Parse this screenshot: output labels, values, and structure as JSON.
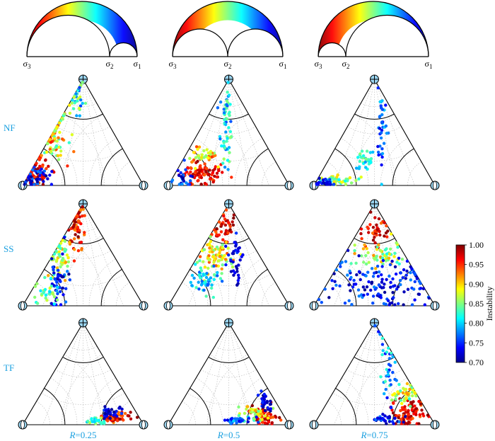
{
  "chart_data": {
    "type": "scatter",
    "row_labels": [
      "NF",
      "SS",
      "TF"
    ],
    "column_labels": [
      {
        "var": "R",
        "text": "=0.25"
      },
      {
        "var": "R",
        "text": "=0.5"
      },
      {
        "var": "R",
        "text": "=0.75"
      }
    ],
    "mohr": {
      "sigma_symbol": "σ",
      "labels": [
        "3",
        "2",
        "1"
      ],
      "R_values": [
        0.25,
        0.5,
        0.75
      ]
    },
    "colorbar": {
      "label": "Instability",
      "ticks": [
        "0.70",
        "0.75",
        "0.80",
        "0.85",
        "0.90",
        "0.95",
        "1.00"
      ],
      "range": [
        0.7,
        1.0
      ],
      "colormap": "jet"
    },
    "colors": {
      "label": "#1aa0e0",
      "axis": "#000000",
      "grid": "#b0b0b0"
    },
    "panels": [
      {
        "row": "NF",
        "R": 0.25,
        "clusters": [
          {
            "cx": 0.1,
            "cy": 0.12,
            "sx": 0.06,
            "sy": 0.08,
            "n": 70,
            "vmin": 0.93,
            "vmax": 1.0
          },
          {
            "cx": 0.25,
            "cy": 0.45,
            "sx": 0.06,
            "sy": 0.12,
            "n": 80,
            "vmin": 0.82,
            "vmax": 0.96
          },
          {
            "cx": 0.44,
            "cy": 0.85,
            "sx": 0.04,
            "sy": 0.08,
            "n": 40,
            "vmin": 0.75,
            "vmax": 0.88
          },
          {
            "cx": 0.1,
            "cy": 0.08,
            "sx": 0.08,
            "sy": 0.06,
            "n": 40,
            "vmin": 0.7,
            "vmax": 0.78
          }
        ]
      },
      {
        "row": "NF",
        "R": 0.5,
        "clusters": [
          {
            "cx": 0.26,
            "cy": 0.1,
            "sx": 0.08,
            "sy": 0.06,
            "n": 80,
            "vmin": 0.93,
            "vmax": 1.0
          },
          {
            "cx": 0.27,
            "cy": 0.28,
            "sx": 0.08,
            "sy": 0.04,
            "n": 40,
            "vmin": 0.85,
            "vmax": 0.95
          },
          {
            "cx": 0.48,
            "cy": 0.55,
            "sx": 0.025,
            "sy": 0.18,
            "n": 60,
            "vmin": 0.76,
            "vmax": 0.86
          },
          {
            "cx": 0.12,
            "cy": 0.08,
            "sx": 0.05,
            "sy": 0.05,
            "n": 25,
            "vmin": 0.7,
            "vmax": 0.78
          }
        ]
      },
      {
        "row": "NF",
        "R": 0.75,
        "clusters": [
          {
            "cx": 0.16,
            "cy": 0.05,
            "sx": 0.09,
            "sy": 0.025,
            "n": 50,
            "vmin": 0.8,
            "vmax": 0.9
          },
          {
            "cx": 0.42,
            "cy": 0.22,
            "sx": 0.04,
            "sy": 0.06,
            "n": 30,
            "vmin": 0.78,
            "vmax": 0.86
          },
          {
            "cx": 0.56,
            "cy": 0.55,
            "sx": 0.02,
            "sy": 0.2,
            "n": 40,
            "vmin": 0.72,
            "vmax": 0.8
          },
          {
            "cx": 0.08,
            "cy": 0.04,
            "sx": 0.04,
            "sy": 0.03,
            "n": 25,
            "vmin": 0.7,
            "vmax": 0.76
          }
        ]
      },
      {
        "row": "SS",
        "R": 0.25,
        "clusters": [
          {
            "cx": 0.44,
            "cy": 0.78,
            "sx": 0.04,
            "sy": 0.12,
            "n": 70,
            "vmin": 0.92,
            "vmax": 1.0
          },
          {
            "cx": 0.3,
            "cy": 0.45,
            "sx": 0.06,
            "sy": 0.1,
            "n": 60,
            "vmin": 0.82,
            "vmax": 0.92
          },
          {
            "cx": 0.3,
            "cy": 0.25,
            "sx": 0.04,
            "sy": 0.12,
            "n": 50,
            "vmin": 0.7,
            "vmax": 0.78
          },
          {
            "cx": 0.18,
            "cy": 0.12,
            "sx": 0.05,
            "sy": 0.06,
            "n": 30,
            "vmin": 0.8,
            "vmax": 0.88
          }
        ]
      },
      {
        "row": "SS",
        "R": 0.5,
        "clusters": [
          {
            "cx": 0.46,
            "cy": 0.76,
            "sx": 0.05,
            "sy": 0.08,
            "n": 45,
            "vmin": 0.93,
            "vmax": 1.0
          },
          {
            "cx": 0.4,
            "cy": 0.48,
            "sx": 0.08,
            "sy": 0.08,
            "n": 80,
            "vmin": 0.84,
            "vmax": 0.94
          },
          {
            "cx": 0.3,
            "cy": 0.25,
            "sx": 0.07,
            "sy": 0.07,
            "n": 50,
            "vmin": 0.76,
            "vmax": 0.84
          },
          {
            "cx": 0.57,
            "cy": 0.45,
            "sx": 0.04,
            "sy": 0.15,
            "n": 35,
            "vmin": 0.7,
            "vmax": 0.76
          }
        ]
      },
      {
        "row": "SS",
        "R": 0.75,
        "clusters": [
          {
            "cx": 0.52,
            "cy": 0.75,
            "sx": 0.05,
            "sy": 0.07,
            "n": 40,
            "vmin": 0.93,
            "vmax": 1.0
          },
          {
            "cx": 0.55,
            "cy": 0.5,
            "sx": 0.1,
            "sy": 0.06,
            "n": 60,
            "vmin": 0.82,
            "vmax": 0.92
          },
          {
            "cx": 0.55,
            "cy": 0.2,
            "sx": 0.22,
            "sy": 0.12,
            "n": 150,
            "vmin": 0.7,
            "vmax": 0.78
          }
        ]
      },
      {
        "row": "TF",
        "R": 0.25,
        "clusters": [
          {
            "cx": 0.76,
            "cy": 0.07,
            "sx": 0.06,
            "sy": 0.03,
            "n": 60,
            "vmin": 0.92,
            "vmax": 1.0
          },
          {
            "cx": 0.74,
            "cy": 0.12,
            "sx": 0.04,
            "sy": 0.03,
            "n": 30,
            "vmin": 0.7,
            "vmax": 0.76
          },
          {
            "cx": 0.62,
            "cy": 0.03,
            "sx": 0.05,
            "sy": 0.02,
            "n": 25,
            "vmin": 0.78,
            "vmax": 0.88
          }
        ]
      },
      {
        "row": "TF",
        "R": 0.5,
        "clusters": [
          {
            "cx": 0.8,
            "cy": 0.08,
            "sx": 0.05,
            "sy": 0.05,
            "n": 60,
            "vmin": 0.93,
            "vmax": 1.0
          },
          {
            "cx": 0.7,
            "cy": 0.1,
            "sx": 0.07,
            "sy": 0.05,
            "n": 40,
            "vmin": 0.82,
            "vmax": 0.92
          },
          {
            "cx": 0.58,
            "cy": 0.04,
            "sx": 0.06,
            "sy": 0.02,
            "n": 35,
            "vmin": 0.72,
            "vmax": 0.8
          },
          {
            "cx": 0.8,
            "cy": 0.22,
            "sx": 0.03,
            "sy": 0.06,
            "n": 30,
            "vmin": 0.7,
            "vmax": 0.76
          }
        ]
      },
      {
        "row": "TF",
        "R": 0.75,
        "clusters": [
          {
            "cx": 0.78,
            "cy": 0.12,
            "sx": 0.07,
            "sy": 0.07,
            "n": 80,
            "vmin": 0.93,
            "vmax": 1.0
          },
          {
            "cx": 0.75,
            "cy": 0.3,
            "sx": 0.05,
            "sy": 0.06,
            "n": 40,
            "vmin": 0.82,
            "vmax": 0.92
          },
          {
            "cx": 0.62,
            "cy": 0.55,
            "sx": 0.03,
            "sy": 0.18,
            "n": 40,
            "vmin": 0.74,
            "vmax": 0.84
          },
          {
            "cx": 0.58,
            "cy": 0.05,
            "sx": 0.07,
            "sy": 0.03,
            "n": 30,
            "vmin": 0.7,
            "vmax": 0.78
          }
        ]
      }
    ]
  }
}
